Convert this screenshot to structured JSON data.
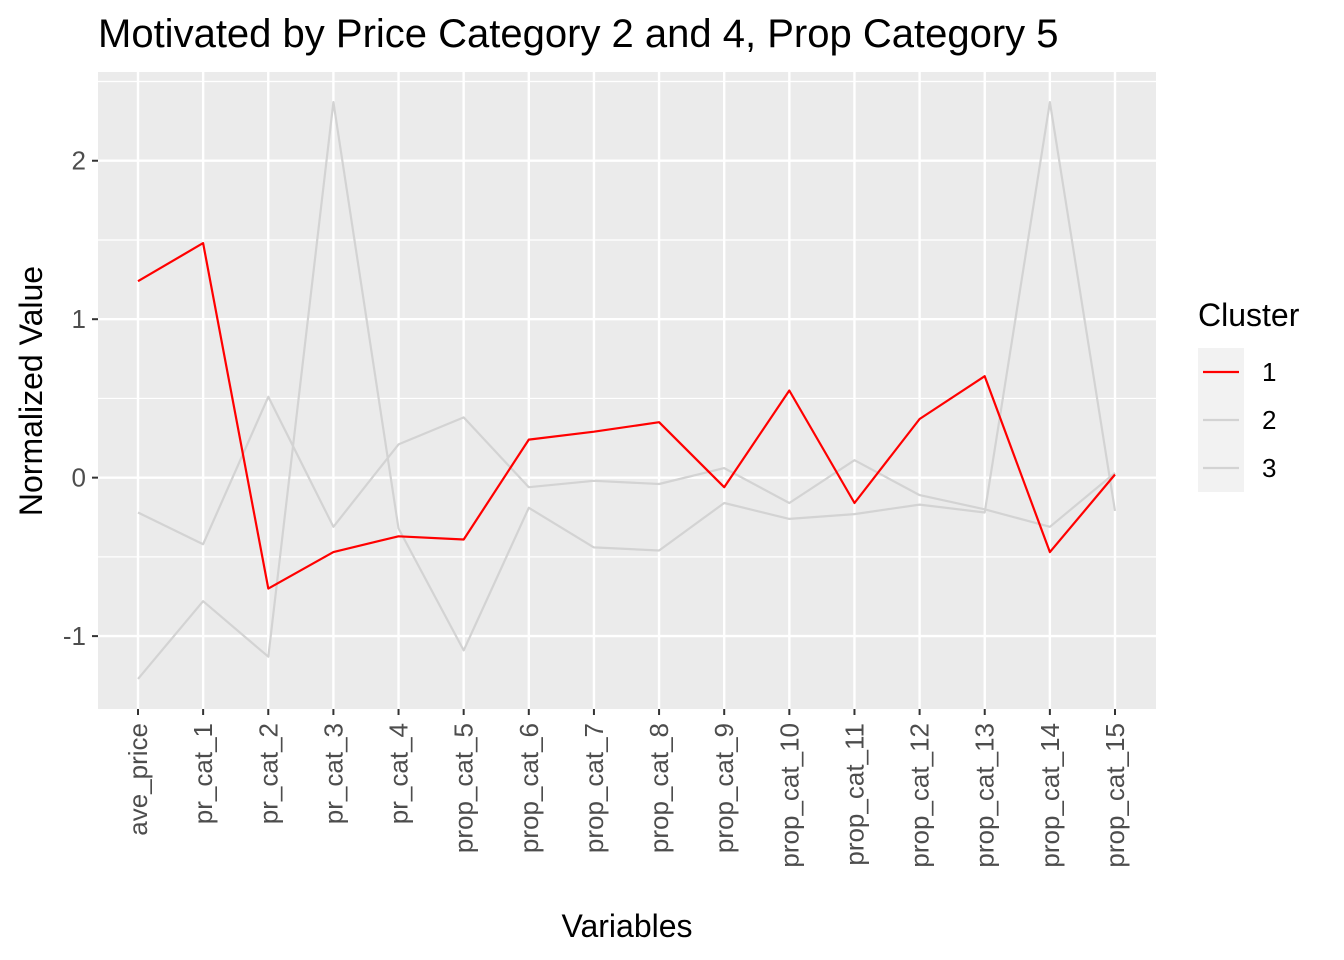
{
  "chart_data": {
    "type": "line",
    "title": "Motivated by Price Category 2 and 4, Prop Category 5",
    "xlabel": "Variables",
    "ylabel": "Normalized Value",
    "categories": [
      "ave_price",
      "pr_cat_1",
      "pr_cat_2",
      "pr_cat_3",
      "pr_cat_4",
      "prop_cat_5",
      "prop_cat_6",
      "prop_cat_7",
      "prop_cat_8",
      "prop_cat_9",
      "prop_cat_10",
      "prop_cat_11",
      "prop_cat_12",
      "prop_cat_13",
      "prop_cat_14",
      "prop_cat_15"
    ],
    "ylim": [
      -1.46,
      2.56
    ],
    "yticks": [
      -1,
      0,
      1,
      2
    ],
    "ytick_labels": [
      "-1",
      "0",
      "1",
      "2"
    ],
    "grid": true,
    "legend_position": "right",
    "legend_title": "Cluster",
    "series": [
      {
        "name": "1",
        "color": "#ff0000",
        "values": [
          1.24,
          1.48,
          -0.7,
          -0.47,
          -0.37,
          -0.39,
          0.24,
          0.29,
          0.35,
          -0.06,
          0.55,
          -0.16,
          0.37,
          0.64,
          -0.47,
          0.02
        ]
      },
      {
        "name": "2",
        "color": "#d3d3d3",
        "values": [
          -0.22,
          -0.42,
          0.51,
          -0.31,
          0.21,
          0.38,
          -0.06,
          -0.02,
          -0.04,
          0.06,
          -0.16,
          0.11,
          -0.11,
          -0.2,
          -0.31,
          0.03
        ]
      },
      {
        "name": "3",
        "color": "#d3d3d3",
        "values": [
          -1.27,
          -0.78,
          -1.13,
          2.37,
          -0.32,
          -1.09,
          -0.19,
          -0.44,
          -0.46,
          -0.16,
          -0.26,
          -0.23,
          -0.17,
          -0.22,
          2.37,
          -0.21
        ]
      }
    ],
    "colors": {
      "panel_bg": "#ebebeb",
      "grid": "#ffffff",
      "legend_key_bg": "#f2f2f2"
    }
  }
}
